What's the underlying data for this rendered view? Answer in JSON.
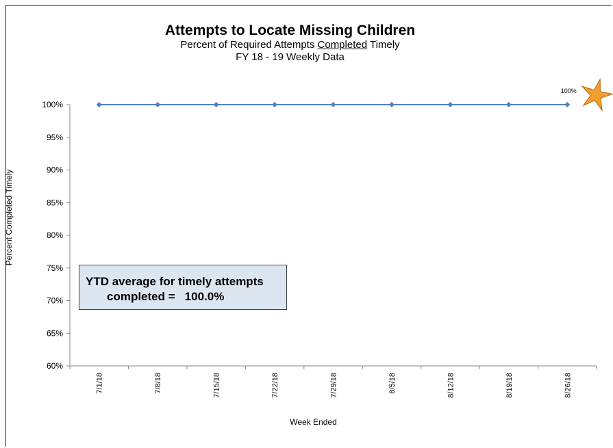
{
  "chart_data": {
    "type": "line",
    "title": "Attempts to Locate Missing Children",
    "subtitle_prefix": "Percent of Required Attempts ",
    "subtitle_underlined": "Completed",
    "subtitle_suffix": " Timely",
    "subtitle2": "FY 18 - 19  Weekly Data",
    "xlabel": "Week Ended",
    "ylabel": "Percent Completed Timely",
    "categories": [
      "7/1/18",
      "7/8/18",
      "7/15/18",
      "7/22/18",
      "7/29/18",
      "8/5/18",
      "8/12/18",
      "8/19/18",
      "8/26/18"
    ],
    "series": [
      {
        "values": [
          100,
          100,
          100,
          100,
          100,
          100,
          100,
          100,
          100
        ]
      }
    ],
    "ylim": [
      60,
      100
    ],
    "yticks": [
      60,
      65,
      70,
      75,
      80,
      85,
      90,
      95,
      100
    ],
    "grid": false,
    "last_point_label": "100%",
    "colors": {
      "line": "#4f81bd",
      "marker": "#4f81bd",
      "star": "#f0a030"
    }
  },
  "callout": {
    "line1": "YTD average for timely attempts",
    "line2": "completed =",
    "value": "100.0%"
  }
}
